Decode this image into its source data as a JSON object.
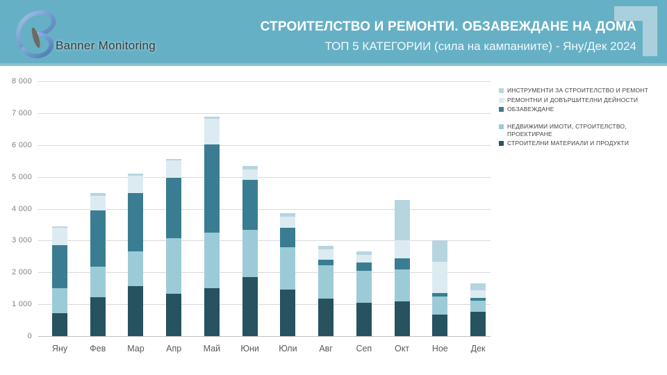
{
  "header": {
    "logo_text": "Banner Monitoring",
    "title_line1": "СТРОИТЕЛСТВО И РЕМОНТИ. ОБЗАВЕЖДАНЕ НА ДОМА",
    "title_line2": "ТОП 5 КАТЕГОРИИ (сила на кампаниите) - Яну/Дек 2024",
    "bg_color": "#66b0c5",
    "corner_color": "#a9d0dc"
  },
  "chart_data": {
    "type": "bar",
    "stacked": true,
    "title": "ТОП 5 КАТЕГОРИИ (сила на кампаниите) - Яну/Дек 2024",
    "categories": [
      "Яну",
      "Фев",
      "Мар",
      "Апр",
      "Май",
      "Юни",
      "Юли",
      "Авг",
      "Сеп",
      "Окт",
      "Ное",
      "Дек"
    ],
    "series": [
      {
        "name": "СТРОИТЕЛНИ МАТЕРИАЛИ И ПРОДУКТИ",
        "color": "#27525f",
        "values": [
          730,
          1220,
          1580,
          1320,
          1500,
          1850,
          1470,
          1180,
          1050,
          1080,
          670,
          760
        ]
      },
      {
        "name": "НЕДВИЖИМИ ИМОТИ, СТРОИТЕЛСТВО, ПРОЕКТИРАНЕ",
        "color": "#9ccbd8",
        "values": [
          780,
          950,
          1090,
          1760,
          1750,
          1490,
          1310,
          1040,
          1000,
          1010,
          570,
          360
        ]
      },
      {
        "name": "ОБЗАВЕЖДАНЕ",
        "color": "#3a7d92",
        "values": [
          1350,
          1770,
          1810,
          1900,
          2770,
          1560,
          620,
          170,
          260,
          350,
          120,
          80
        ]
      },
      {
        "name": "РЕМОНТНИ И ДОВЪРШИТЕЛНИ ДЕЙНОСТИ",
        "color": "#dcebf1",
        "values": [
          540,
          470,
          560,
          530,
          810,
          330,
          350,
          340,
          240,
          560,
          980,
          240
        ]
      },
      {
        "name": "ИНСТРУМЕНТИ ЗА СТРОИТЕЛСТВО И РЕМОНТ",
        "color": "#b7d5df",
        "values": [
          50,
          80,
          60,
          40,
          50,
          100,
          100,
          100,
          100,
          1280,
          660,
          210
        ]
      }
    ],
    "totals": [
      3450,
      4490,
      5100,
      5550,
      6880,
      5330,
      3850,
      2830,
      2650,
      4280,
      3000,
      1650
    ],
    "xlabel": "",
    "ylabel": "",
    "ylim": [
      0,
      8000
    ],
    "ytick_step": 1000,
    "ytick_labels": [
      "0",
      "1 000",
      "2 000",
      "3 000",
      "4 000",
      "5 000",
      "6 000",
      "7 000",
      "8 000"
    ],
    "grid": true,
    "legend_position": "right"
  },
  "legend": {
    "items": [
      {
        "label": "ИНСТРУМЕНТИ ЗА СТРОИТЕЛСТВО И РЕМОНТ",
        "color": "#b7d5df",
        "gap_before": false
      },
      {
        "label": "РЕМОНТНИ И ДОВЪРШИТЕЛНИ ДЕЙНОСТИ",
        "color": "#dcebf1",
        "gap_before": false
      },
      {
        "label": "ОБЗАВЕЖДАНЕ",
        "color": "#3a7d92",
        "gap_before": false
      },
      {
        "label": "НЕДВИЖИМИ ИМОТИ, СТРОИТЕЛСТВО, ПРОЕКТИРАНЕ",
        "color": "#9ccbd8",
        "gap_before": true
      },
      {
        "label": "СТРОИТЕЛНИ МАТЕРИАЛИ И ПРОДУКТИ",
        "color": "#27525f",
        "gap_before": false
      }
    ]
  }
}
